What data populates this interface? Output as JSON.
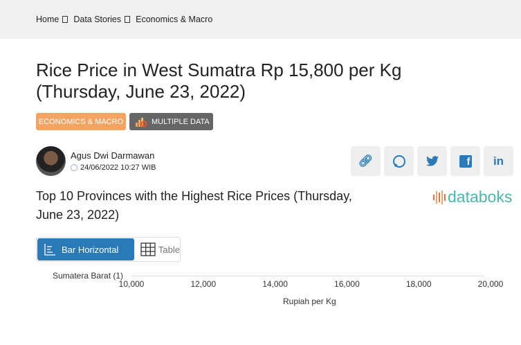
{
  "breadcrumb": [
    "Home",
    "Data Stories",
    "Economics & Macro"
  ],
  "title": "Rice Price in West Sumatra Rp 15,800 per Kg (Thursday, June 23, 2022)",
  "badges": {
    "category": "ECONOMICS & MACRO",
    "multiple": "MULTIPLE DATA"
  },
  "author": {
    "name": "Agus Dwi Darmawan",
    "date": "24/06/2022 10:27 WIB"
  },
  "share": [
    "link-icon",
    "whatsapp-icon",
    "twitter-icon",
    "facebook-icon",
    "linkedin-icon"
  ],
  "chart_title": "Top 10 Provinces with the Highest Rice Prices (Thursday, June 23, 2022)",
  "logo": "databoks",
  "view_tabs": {
    "bar": "Bar Horizontal",
    "table": "Table"
  },
  "colors": {
    "accent": "#2a7ab8",
    "badge": "#f4a462",
    "logo": "#4db6ac"
  },
  "chart_data": {
    "type": "bar",
    "orientation": "horizontal",
    "categories": [
      "Sumatera Barat (1)"
    ],
    "xlabel": "Rupiah per Kg",
    "xlim": [
      10000,
      20000
    ],
    "xticks": [
      "10,000",
      "12,000",
      "14,000",
      "16,000",
      "18,000",
      "20,000"
    ],
    "grid": true
  }
}
